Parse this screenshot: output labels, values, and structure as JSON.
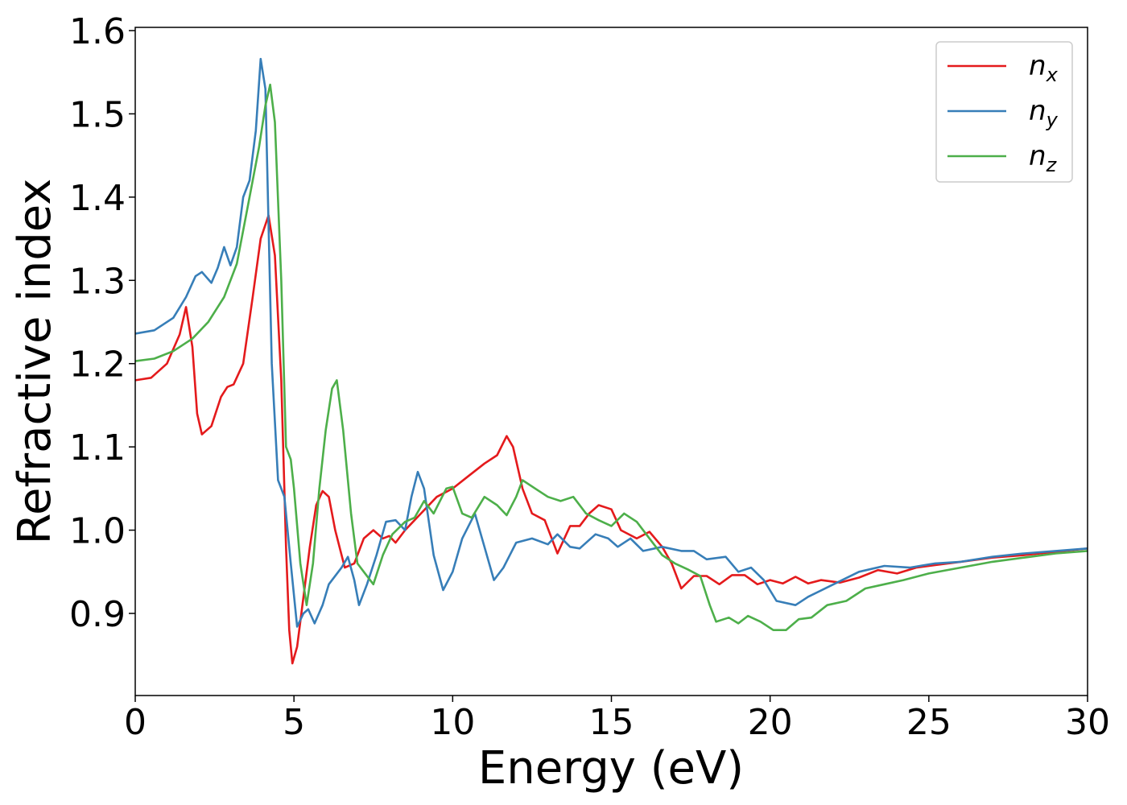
{
  "chart_data": {
    "type": "line",
    "xlabel": "Energy (eV)",
    "ylabel": "Refractive index",
    "xlim": [
      0,
      30
    ],
    "ylim": [
      0.8,
      1.6
    ],
    "xticks": [
      "0",
      "5",
      "10",
      "15",
      "20",
      "25",
      "30"
    ],
    "yticks": [
      "0.9",
      "1.0",
      "1.1",
      "1.2",
      "1.3",
      "1.4",
      "1.5",
      "1.6"
    ],
    "grid": false,
    "legend_position": "top-right",
    "series": [
      {
        "name": "n",
        "subscript": "x",
        "color": "#e41a1c",
        "points": [
          [
            0,
            1.18
          ],
          [
            0.5,
            1.183
          ],
          [
            1.0,
            1.2
          ],
          [
            1.4,
            1.235
          ],
          [
            1.6,
            1.268
          ],
          [
            1.8,
            1.22
          ],
          [
            1.95,
            1.14
          ],
          [
            2.1,
            1.115
          ],
          [
            2.4,
            1.125
          ],
          [
            2.7,
            1.16
          ],
          [
            2.9,
            1.172
          ],
          [
            3.1,
            1.175
          ],
          [
            3.4,
            1.2
          ],
          [
            3.7,
            1.28
          ],
          [
            3.95,
            1.35
          ],
          [
            4.2,
            1.378
          ],
          [
            4.4,
            1.33
          ],
          [
            4.6,
            1.18
          ],
          [
            4.75,
            0.98
          ],
          [
            4.85,
            0.88
          ],
          [
            4.95,
            0.84
          ],
          [
            5.1,
            0.86
          ],
          [
            5.3,
            0.92
          ],
          [
            5.5,
            0.98
          ],
          [
            5.7,
            1.03
          ],
          [
            5.9,
            1.047
          ],
          [
            6.1,
            1.04
          ],
          [
            6.3,
            1.0
          ],
          [
            6.6,
            0.955
          ],
          [
            6.9,
            0.96
          ],
          [
            7.2,
            0.99
          ],
          [
            7.5,
            1.0
          ],
          [
            7.8,
            0.99
          ],
          [
            8.0,
            0.993
          ],
          [
            8.2,
            0.985
          ],
          [
            8.5,
            1.0
          ],
          [
            9.0,
            1.02
          ],
          [
            9.5,
            1.04
          ],
          [
            10.0,
            1.05
          ],
          [
            10.5,
            1.065
          ],
          [
            11.0,
            1.08
          ],
          [
            11.4,
            1.09
          ],
          [
            11.7,
            1.113
          ],
          [
            11.9,
            1.1
          ],
          [
            12.2,
            1.05
          ],
          [
            12.5,
            1.02
          ],
          [
            12.9,
            1.012
          ],
          [
            13.3,
            0.972
          ],
          [
            13.7,
            1.005
          ],
          [
            14.0,
            1.005
          ],
          [
            14.3,
            1.02
          ],
          [
            14.6,
            1.03
          ],
          [
            15.0,
            1.025
          ],
          [
            15.3,
            1.0
          ],
          [
            15.8,
            0.99
          ],
          [
            16.2,
            0.998
          ],
          [
            16.6,
            0.98
          ],
          [
            16.9,
            0.96
          ],
          [
            17.2,
            0.93
          ],
          [
            17.6,
            0.945
          ],
          [
            18.0,
            0.945
          ],
          [
            18.4,
            0.935
          ],
          [
            18.8,
            0.946
          ],
          [
            19.2,
            0.946
          ],
          [
            19.6,
            0.935
          ],
          [
            20.0,
            0.94
          ],
          [
            20.4,
            0.936
          ],
          [
            20.8,
            0.944
          ],
          [
            21.2,
            0.936
          ],
          [
            21.6,
            0.94
          ],
          [
            22.2,
            0.937
          ],
          [
            22.8,
            0.943
          ],
          [
            23.4,
            0.952
          ],
          [
            24.0,
            0.948
          ],
          [
            24.6,
            0.955
          ],
          [
            25.2,
            0.958
          ],
          [
            26.0,
            0.962
          ],
          [
            27.0,
            0.967
          ],
          [
            28.0,
            0.97
          ],
          [
            29.0,
            0.974
          ],
          [
            30.0,
            0.978
          ]
        ]
      },
      {
        "name": "n",
        "subscript": "y",
        "color": "#377eb8",
        "points": [
          [
            0,
            1.236
          ],
          [
            0.6,
            1.24
          ],
          [
            1.2,
            1.255
          ],
          [
            1.6,
            1.28
          ],
          [
            1.9,
            1.305
          ],
          [
            2.1,
            1.31
          ],
          [
            2.4,
            1.297
          ],
          [
            2.6,
            1.315
          ],
          [
            2.8,
            1.34
          ],
          [
            3.0,
            1.318
          ],
          [
            3.2,
            1.34
          ],
          [
            3.4,
            1.4
          ],
          [
            3.6,
            1.42
          ],
          [
            3.8,
            1.48
          ],
          [
            3.95,
            1.566
          ],
          [
            4.1,
            1.53
          ],
          [
            4.3,
            1.2
          ],
          [
            4.5,
            1.06
          ],
          [
            4.7,
            1.04
          ],
          [
            4.9,
            0.96
          ],
          [
            5.1,
            0.884
          ],
          [
            5.3,
            0.9
          ],
          [
            5.45,
            0.905
          ],
          [
            5.65,
            0.888
          ],
          [
            5.9,
            0.91
          ],
          [
            6.1,
            0.935
          ],
          [
            6.5,
            0.955
          ],
          [
            6.7,
            0.968
          ],
          [
            6.9,
            0.94
          ],
          [
            7.05,
            0.91
          ],
          [
            7.3,
            0.935
          ],
          [
            7.6,
            0.97
          ],
          [
            7.9,
            1.01
          ],
          [
            8.2,
            1.012
          ],
          [
            8.5,
            1.0
          ],
          [
            8.7,
            1.04
          ],
          [
            8.9,
            1.07
          ],
          [
            9.1,
            1.05
          ],
          [
            9.4,
            0.97
          ],
          [
            9.7,
            0.928
          ],
          [
            10.0,
            0.95
          ],
          [
            10.3,
            0.99
          ],
          [
            10.7,
            1.02
          ],
          [
            11.0,
            0.98
          ],
          [
            11.3,
            0.94
          ],
          [
            11.6,
            0.955
          ],
          [
            12.0,
            0.985
          ],
          [
            12.5,
            0.99
          ],
          [
            13.0,
            0.983
          ],
          [
            13.3,
            0.995
          ],
          [
            13.7,
            0.98
          ],
          [
            14.0,
            0.978
          ],
          [
            14.5,
            0.995
          ],
          [
            14.9,
            0.99
          ],
          [
            15.2,
            0.98
          ],
          [
            15.6,
            0.99
          ],
          [
            16.0,
            0.975
          ],
          [
            16.6,
            0.98
          ],
          [
            17.2,
            0.975
          ],
          [
            17.6,
            0.975
          ],
          [
            18.0,
            0.965
          ],
          [
            18.6,
            0.968
          ],
          [
            19.0,
            0.95
          ],
          [
            19.4,
            0.955
          ],
          [
            19.8,
            0.94
          ],
          [
            20.2,
            0.915
          ],
          [
            20.8,
            0.91
          ],
          [
            21.2,
            0.92
          ],
          [
            22.0,
            0.935
          ],
          [
            22.8,
            0.95
          ],
          [
            23.6,
            0.957
          ],
          [
            24.4,
            0.955
          ],
          [
            25.2,
            0.96
          ],
          [
            26.0,
            0.962
          ],
          [
            27.0,
            0.968
          ],
          [
            28.0,
            0.972
          ],
          [
            29.0,
            0.975
          ],
          [
            30.0,
            0.978
          ]
        ]
      },
      {
        "name": "n",
        "subscript": "z",
        "color": "#4daf4a",
        "points": [
          [
            0,
            1.203
          ],
          [
            0.6,
            1.206
          ],
          [
            1.2,
            1.215
          ],
          [
            1.8,
            1.23
          ],
          [
            2.3,
            1.25
          ],
          [
            2.8,
            1.28
          ],
          [
            3.2,
            1.32
          ],
          [
            3.6,
            1.4
          ],
          [
            3.9,
            1.46
          ],
          [
            4.1,
            1.51
          ],
          [
            4.25,
            1.535
          ],
          [
            4.4,
            1.49
          ],
          [
            4.6,
            1.3
          ],
          [
            4.75,
            1.1
          ],
          [
            4.9,
            1.085
          ],
          [
            5.0,
            1.05
          ],
          [
            5.2,
            0.96
          ],
          [
            5.4,
            0.91
          ],
          [
            5.6,
            0.96
          ],
          [
            5.8,
            1.05
          ],
          [
            6.0,
            1.12
          ],
          [
            6.2,
            1.17
          ],
          [
            6.35,
            1.18
          ],
          [
            6.55,
            1.12
          ],
          [
            6.8,
            1.02
          ],
          [
            7.0,
            0.96
          ],
          [
            7.2,
            0.95
          ],
          [
            7.5,
            0.935
          ],
          [
            7.8,
            0.97
          ],
          [
            8.1,
            0.995
          ],
          [
            8.5,
            1.01
          ],
          [
            8.8,
            1.015
          ],
          [
            9.1,
            1.035
          ],
          [
            9.4,
            1.02
          ],
          [
            9.8,
            1.05
          ],
          [
            10.0,
            1.052
          ],
          [
            10.3,
            1.02
          ],
          [
            10.6,
            1.015
          ],
          [
            11.0,
            1.04
          ],
          [
            11.4,
            1.03
          ],
          [
            11.7,
            1.018
          ],
          [
            12.0,
            1.04
          ],
          [
            12.2,
            1.06
          ],
          [
            12.6,
            1.05
          ],
          [
            13.0,
            1.04
          ],
          [
            13.4,
            1.035
          ],
          [
            13.8,
            1.04
          ],
          [
            14.2,
            1.02
          ],
          [
            14.6,
            1.012
          ],
          [
            15.0,
            1.005
          ],
          [
            15.4,
            1.02
          ],
          [
            15.8,
            1.01
          ],
          [
            16.2,
            0.99
          ],
          [
            16.6,
            0.97
          ],
          [
            17.0,
            0.96
          ],
          [
            17.4,
            0.953
          ],
          [
            17.8,
            0.945
          ],
          [
            18.1,
            0.91
          ],
          [
            18.3,
            0.89
          ],
          [
            18.7,
            0.895
          ],
          [
            19.0,
            0.888
          ],
          [
            19.3,
            0.897
          ],
          [
            19.7,
            0.89
          ],
          [
            20.1,
            0.88
          ],
          [
            20.5,
            0.88
          ],
          [
            20.9,
            0.893
          ],
          [
            21.3,
            0.895
          ],
          [
            21.8,
            0.91
          ],
          [
            22.4,
            0.915
          ],
          [
            23.0,
            0.93
          ],
          [
            23.6,
            0.935
          ],
          [
            24.2,
            0.94
          ],
          [
            25.0,
            0.948
          ],
          [
            26.0,
            0.955
          ],
          [
            27.0,
            0.962
          ],
          [
            28.0,
            0.967
          ],
          [
            29.0,
            0.972
          ],
          [
            30.0,
            0.975
          ]
        ]
      }
    ]
  }
}
